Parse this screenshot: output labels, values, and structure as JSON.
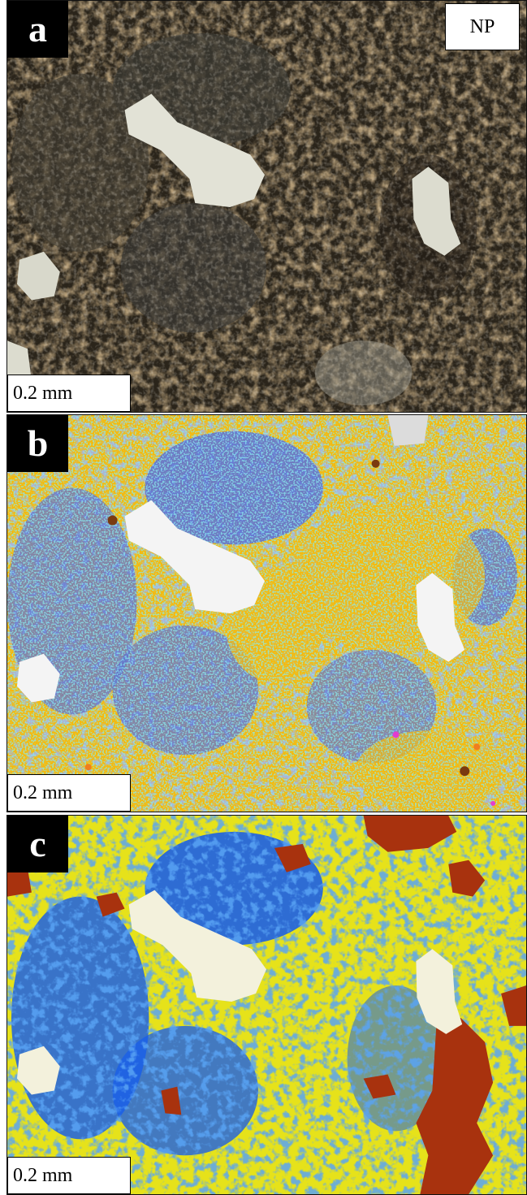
{
  "panels": [
    {
      "label": "a",
      "scale": "0.2 mm",
      "mode": "NP",
      "image": "photomicrograph-plane-polarized"
    },
    {
      "label": "b",
      "scale": "0.2 mm",
      "image": "mineral-phase-map",
      "colors": {
        "dominant": "#f6b90c",
        "second": "#5f73d4",
        "accent_cyan": "#3fd8e0",
        "accent_brown": "#7a3a10",
        "metal": "#f4f4f4",
        "minor_magenta": "#e33ccf",
        "minor_orange": "#f07d1f"
      }
    },
    {
      "label": "c",
      "scale": "0.2 mm",
      "image": "phase-classification-map",
      "colors": {
        "dominant": "#e6e21a",
        "second": "#1a5fe8",
        "third": "#a8320e",
        "metal": "#f3f1dc"
      }
    }
  ]
}
